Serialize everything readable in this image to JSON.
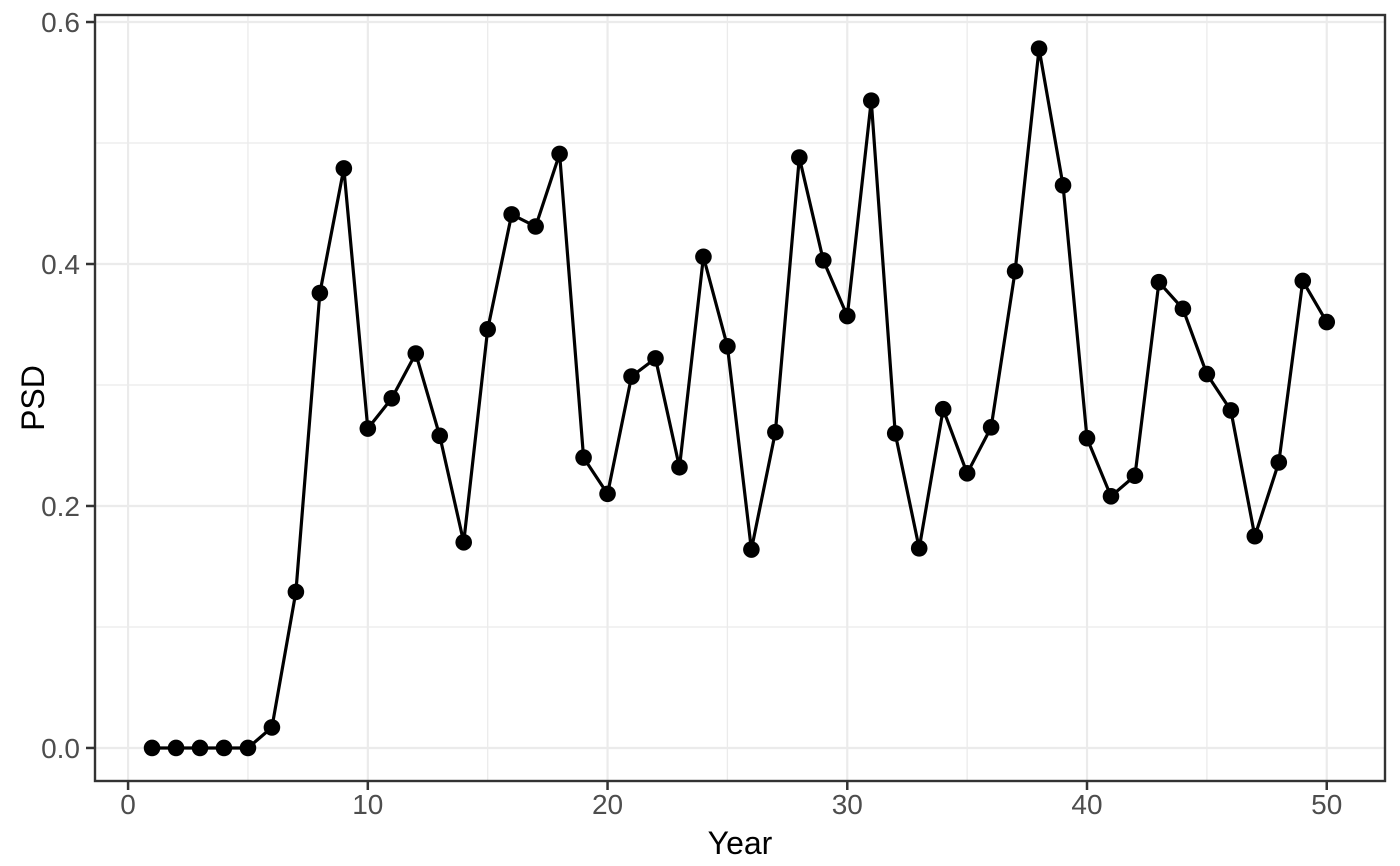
{
  "chart_data": {
    "type": "line",
    "title": "",
    "xlabel": "Year",
    "ylabel": "PSD",
    "series_name": "PSD",
    "x": [
      1,
      2,
      3,
      4,
      5,
      6,
      7,
      8,
      9,
      10,
      11,
      12,
      13,
      14,
      15,
      16,
      17,
      18,
      19,
      20,
      21,
      22,
      23,
      24,
      25,
      26,
      27,
      28,
      29,
      30,
      31,
      32,
      33,
      34,
      35,
      36,
      37,
      38,
      39,
      40,
      41,
      42,
      43,
      44,
      45,
      46,
      47,
      48,
      49,
      50
    ],
    "y": [
      0.0,
      0.0,
      0.0,
      0.0,
      0.0,
      0.017,
      0.129,
      0.376,
      0.479,
      0.264,
      0.289,
      0.326,
      0.258,
      0.17,
      0.346,
      0.441,
      0.431,
      0.491,
      0.24,
      0.21,
      0.307,
      0.322,
      0.232,
      0.406,
      0.332,
      0.164,
      0.261,
      0.488,
      0.403,
      0.357,
      0.535,
      0.26,
      0.165,
      0.28,
      0.227,
      0.265,
      0.394,
      0.578,
      0.465,
      0.256,
      0.208,
      0.225,
      0.385,
      0.363,
      0.309,
      0.279,
      0.175,
      0.236,
      0.386,
      0.352
    ],
    "x_ticks": [
      0,
      10,
      20,
      30,
      40,
      50
    ],
    "x_tick_labels": [
      "0",
      "10",
      "20",
      "30",
      "40",
      "50"
    ],
    "x_minor_ticks": [
      5,
      15,
      25,
      35,
      45
    ],
    "y_ticks": [
      0.0,
      0.2,
      0.4,
      0.6
    ],
    "y_tick_labels": [
      "0.0",
      "0.2",
      "0.4",
      "0.6"
    ],
    "y_minor_ticks": [
      0.1,
      0.3,
      0.5
    ],
    "xlim": [
      -1.38,
      52.43
    ],
    "ylim": [
      -0.0273,
      0.6058
    ],
    "grid": "major-and-minor",
    "legend": "none",
    "marker": "filled-circle",
    "colors": {
      "line": "#000000",
      "point": "#000000",
      "grid": "#ebebeb",
      "panel_border": "#333333",
      "tick_mark": "#333333",
      "tick_text": "#4d4d4d",
      "axis_title": "#000000",
      "background": "#ffffff"
    }
  }
}
